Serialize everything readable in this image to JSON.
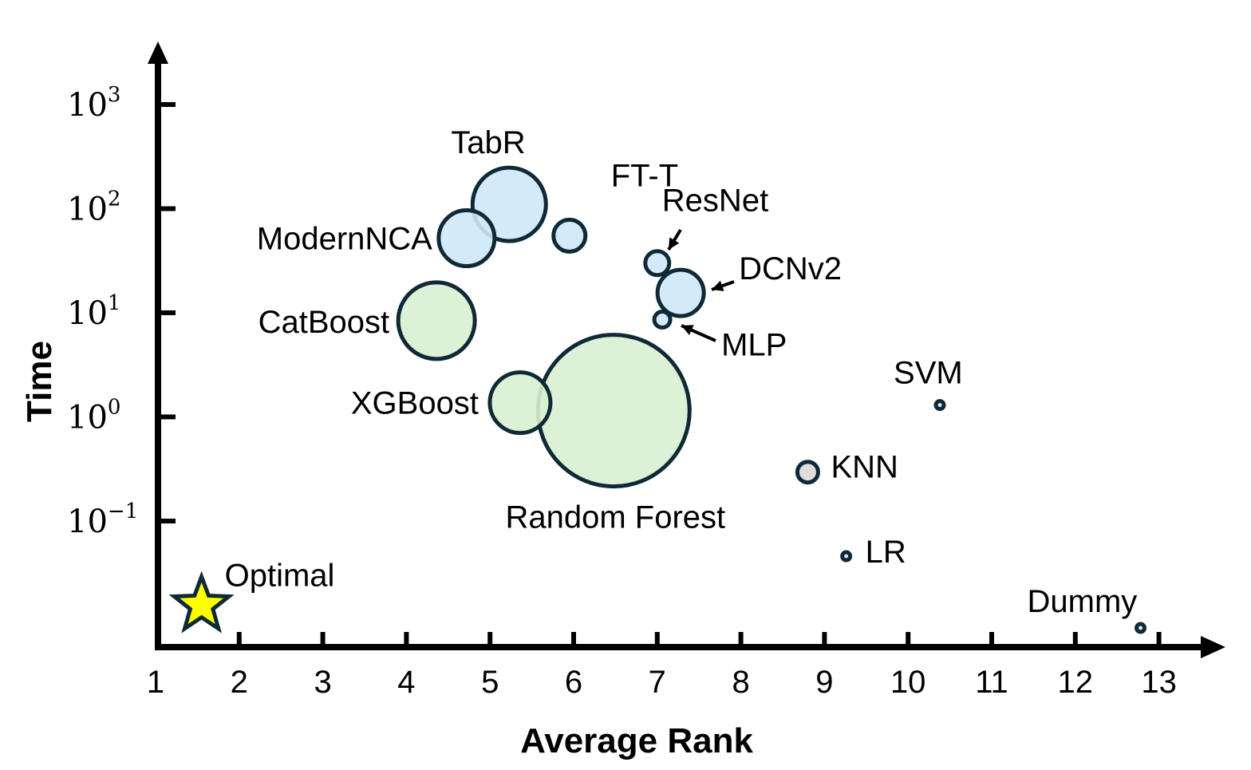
{
  "chart_data": {
    "type": "scatter",
    "title": "",
    "xlabel": "Average Rank",
    "ylabel": "Time",
    "y_scale": "log",
    "xlim": [
      1,
      13.6
    ],
    "ylim": [
      0.002,
      5000
    ],
    "x_ticks": [
      "1",
      "2",
      "3",
      "4",
      "5",
      "6",
      "7",
      "8",
      "9",
      "10",
      "11",
      "12",
      "13"
    ],
    "y_ticks": [
      {
        "base": "10",
        "exp": "3",
        "value": 1000
      },
      {
        "base": "10",
        "exp": "2",
        "value": 100
      },
      {
        "base": "10",
        "exp": "1",
        "value": 10
      },
      {
        "base": "10",
        "exp": "0",
        "value": 1
      },
      {
        "base": "10",
        "exp": "−1",
        "value": 0.1
      }
    ],
    "grid": false,
    "colors": {
      "deep": "#cfe8f7",
      "tree": "#d9f0d2",
      "knn": "#d9d9d9",
      "optimal": "#ffff00",
      "edge": "#0f2a36"
    },
    "points": [
      {
        "label": "TabR",
        "x": 5.23,
        "y": 110,
        "size": 46,
        "group": "deep"
      },
      {
        "label": "FT-T",
        "x": 5.95,
        "y": 55,
        "size": 20,
        "group": "deep"
      },
      {
        "label": "ModernNCA",
        "x": 4.72,
        "y": 52,
        "size": 35,
        "group": "deep"
      },
      {
        "label": "ResNet",
        "x": 7.0,
        "y": 30,
        "size": 15,
        "group": "deep"
      },
      {
        "label": "DCNv2",
        "x": 7.28,
        "y": 15.5,
        "size": 29,
        "group": "deep"
      },
      {
        "label": "MLP",
        "x": 7.06,
        "y": 8.6,
        "size": 10,
        "group": "deep"
      },
      {
        "label": "CatBoost",
        "x": 4.36,
        "y": 8.4,
        "size": 48,
        "group": "tree"
      },
      {
        "label": "XGBoost",
        "x": 5.36,
        "y": 1.37,
        "size": 38,
        "group": "tree"
      },
      {
        "label": "Random Forest",
        "x": 6.48,
        "y": 1.15,
        "size": 95,
        "group": "tree"
      },
      {
        "label": "KNN",
        "x": 8.8,
        "y": 0.295,
        "size": 13,
        "group": "knn"
      },
      {
        "label": "SVM",
        "x": 10.38,
        "y": 1.3,
        "size": 5,
        "group": "deep"
      },
      {
        "label": "LR",
        "x": 9.26,
        "y": 0.046,
        "size": 5,
        "group": "deep"
      },
      {
        "label": "Dummy",
        "x": 12.78,
        "y": 0.0094,
        "size": 5,
        "group": "deep"
      },
      {
        "label": "Optimal",
        "x": 1.55,
        "y": 0.0155,
        "size": 0,
        "group": "optimal"
      }
    ]
  }
}
